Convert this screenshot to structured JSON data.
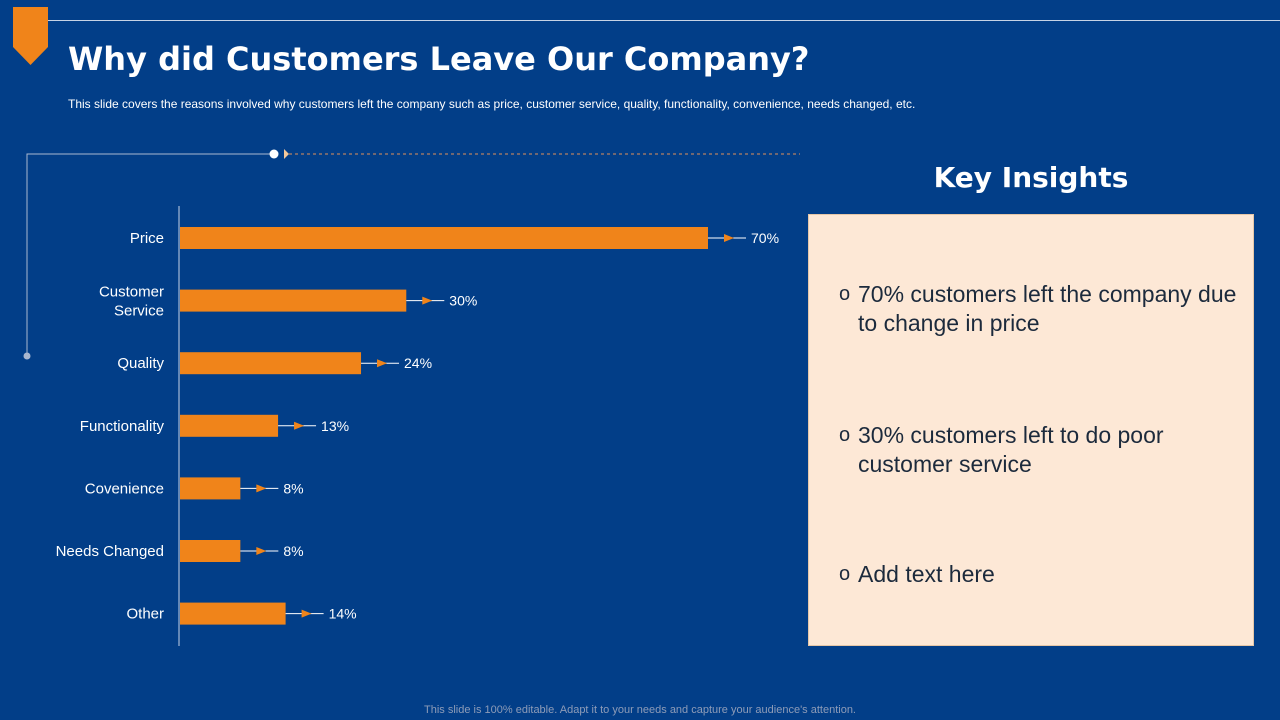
{
  "slide": {
    "title": "Why did Customers Leave Our Company?",
    "subtitle": "This slide covers the reasons involved why customers left the company  such as price, customer service, quality, functionality,  convenience,  needs changed,  etc.",
    "footer": "This slide is 100% editable. Adapt it to your needs and capture your audience's attention."
  },
  "insights": {
    "title": "Key Insights",
    "bullet_glyph": "o",
    "items": [
      "70% customers left the company due to change in price",
      "30% customers left to do poor customer service",
      "Add text here"
    ]
  },
  "colors": {
    "background": "#023e88",
    "bar": "#f0841a",
    "insights_panel": "#fde8d6",
    "accent": "#f0841a"
  },
  "chart_data": {
    "type": "bar",
    "orientation": "horizontal",
    "categories": [
      "Price",
      "Customer Service",
      "Quality",
      "Functionality",
      "Covenience",
      "Needs Changed",
      "Other"
    ],
    "values": [
      70,
      30,
      24,
      13,
      8,
      8,
      14
    ],
    "value_labels": [
      "70%",
      "30%",
      "24%",
      "13%",
      "8%",
      "8%",
      "14%"
    ],
    "unit": "%",
    "xlim": [
      0,
      100
    ],
    "grid": false,
    "legend": "none"
  }
}
